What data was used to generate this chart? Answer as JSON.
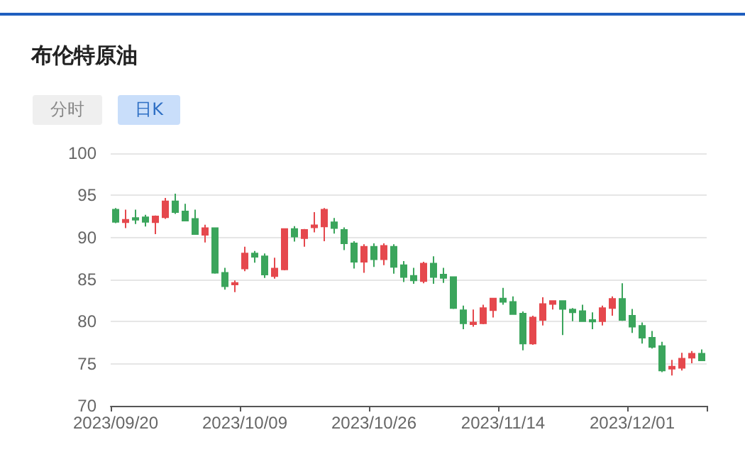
{
  "chart_data": {
    "type": "candlestick",
    "title": "布伦特原油",
    "annotations": [
      "分时",
      "日K"
    ],
    "categories": [
      "2023/09/20",
      null,
      null,
      null,
      null,
      null,
      null,
      null,
      null,
      null,
      null,
      null,
      null,
      "2023/10/09",
      null,
      null,
      null,
      null,
      null,
      null,
      null,
      null,
      null,
      null,
      null,
      null,
      "2023/10/26",
      null,
      null,
      null,
      null,
      null,
      null,
      null,
      null,
      null,
      null,
      null,
      null,
      "2023/11/14",
      null,
      null,
      null,
      null,
      null,
      null,
      null,
      null,
      null,
      null,
      null,
      null,
      "2023/12/01",
      null,
      null,
      null,
      null,
      null,
      null,
      null
    ],
    "ohlc": [
      [
        93.3,
        93.5,
        91.7,
        91.85
      ],
      [
        91.8,
        93.3,
        91.1,
        92.1
      ],
      [
        92.3,
        93.3,
        91.6,
        92.1
      ],
      [
        92.4,
        92.7,
        91.3,
        91.85
      ],
      [
        91.8,
        92.6,
        90.4,
        92.5
      ],
      [
        92.4,
        94.7,
        92.2,
        94.3
      ],
      [
        94.3,
        95.2,
        92.8,
        93.0
      ],
      [
        93.1,
        94.0,
        91.9,
        92.0
      ],
      [
        92.2,
        93.3,
        90.3,
        90.4
      ],
      [
        90.3,
        91.5,
        89.4,
        91.1
      ],
      [
        91.1,
        91.2,
        85.7,
        85.8
      ],
      [
        85.8,
        86.4,
        83.8,
        84.2
      ],
      [
        84.4,
        84.9,
        83.5,
        84.6
      ],
      [
        86.3,
        88.9,
        86.0,
        88.1
      ],
      [
        88.1,
        88.4,
        87.0,
        87.7
      ],
      [
        87.75,
        88.1,
        85.2,
        85.6
      ],
      [
        85.4,
        87.6,
        85.1,
        86.3
      ],
      [
        86.2,
        91.0,
        86.1,
        91.0
      ],
      [
        91.0,
        91.35,
        89.5,
        90.1
      ],
      [
        89.9,
        91.0,
        88.9,
        90.9
      ],
      [
        91.2,
        93.0,
        90.6,
        91.45
      ],
      [
        91.3,
        93.5,
        89.55,
        93.3
      ],
      [
        91.8,
        92.3,
        90.45,
        91.1
      ],
      [
        90.9,
        91.2,
        88.5,
        89.3
      ],
      [
        89.3,
        89.55,
        86.3,
        87.1
      ],
      [
        87.1,
        89.2,
        85.8,
        88.9
      ],
      [
        88.9,
        89.3,
        86.5,
        87.4
      ],
      [
        87.4,
        89.3,
        86.7,
        89.0
      ],
      [
        88.9,
        89.2,
        85.7,
        86.5
      ],
      [
        86.7,
        87.2,
        84.7,
        85.3
      ],
      [
        85.45,
        86.4,
        84.5,
        84.9
      ],
      [
        84.8,
        87.1,
        84.55,
        86.9
      ],
      [
        86.9,
        87.75,
        84.5,
        85.3
      ],
      [
        85.6,
        86.4,
        84.6,
        85.2
      ],
      [
        85.3,
        85.3,
        81.5,
        81.6
      ],
      [
        81.35,
        81.9,
        79.1,
        79.8
      ],
      [
        79.7,
        81.45,
        79.4,
        79.9
      ],
      [
        79.8,
        82.0,
        79.7,
        81.6
      ],
      [
        81.35,
        82.75,
        80.5,
        82.75
      ],
      [
        82.75,
        84.0,
        82.0,
        82.35
      ],
      [
        82.35,
        83.0,
        80.8,
        80.9
      ],
      [
        80.95,
        81.2,
        76.6,
        77.4
      ],
      [
        77.4,
        80.7,
        77.25,
        80.5
      ],
      [
        80.2,
        82.9,
        79.55,
        82.1
      ],
      [
        82.1,
        82.45,
        81.45,
        82.45
      ],
      [
        82.45,
        82.45,
        78.4,
        81.5
      ],
      [
        81.45,
        81.6,
        80.05,
        81.1
      ],
      [
        81.25,
        82.0,
        80.0,
        80.05
      ],
      [
        80.2,
        81.1,
        79.1,
        80.0
      ],
      [
        80.05,
        81.9,
        79.55,
        81.6
      ],
      [
        81.6,
        83.0,
        80.7,
        82.7
      ],
      [
        82.7,
        84.55,
        80.1,
        80.2
      ],
      [
        80.7,
        81.5,
        78.65,
        79.4
      ],
      [
        79.5,
        79.9,
        77.4,
        78.1
      ],
      [
        78.1,
        78.9,
        76.8,
        77.0
      ],
      [
        77.1,
        77.6,
        74.0,
        74.2
      ],
      [
        74.4,
        75.45,
        73.6,
        74.65
      ],
      [
        74.5,
        76.3,
        74.2,
        75.6
      ],
      [
        75.7,
        76.5,
        75.05,
        76.2
      ],
      [
        76.2,
        76.7,
        75.3,
        75.4
      ]
    ],
    "colors": [
      "#3ba55c",
      "#e5484d",
      "#3ba55c",
      "#3ba55c",
      "#e5484d",
      "#e5484d",
      "#3ba55c",
      "#3ba55c",
      "#3ba55c",
      "#e5484d",
      "#3ba55c",
      "#3ba55c",
      "#e5484d",
      "#e5484d",
      "#3ba55c",
      "#3ba55c",
      "#e5484d",
      "#e5484d",
      "#3ba55c",
      "#e5484d",
      "#e5484d",
      "#e5484d",
      "#3ba55c",
      "#3ba55c",
      "#3ba55c",
      "#e5484d",
      "#3ba55c",
      "#e5484d",
      "#3ba55c",
      "#3ba55c",
      "#3ba55c",
      "#e5484d",
      "#3ba55c",
      "#3ba55c",
      "#3ba55c",
      "#3ba55c",
      "#e5484d",
      "#e5484d",
      "#e5484d",
      "#3ba55c",
      "#3ba55c",
      "#3ba55c",
      "#e5484d",
      "#e5484d",
      "#e5484d",
      "#3ba55c",
      "#3ba55c",
      "#3ba55c",
      "#3ba55c",
      "#e5484d",
      "#e5484d",
      "#3ba55c",
      "#3ba55c",
      "#3ba55c",
      "#3ba55c",
      "#3ba55c",
      "#e5484d",
      "#e5484d",
      "#e5484d",
      "#3ba55c"
    ],
    "ylim": [
      70,
      100
    ],
    "yticks": [
      70,
      75,
      80,
      85,
      90,
      95,
      100
    ],
    "grid": "y"
  }
}
